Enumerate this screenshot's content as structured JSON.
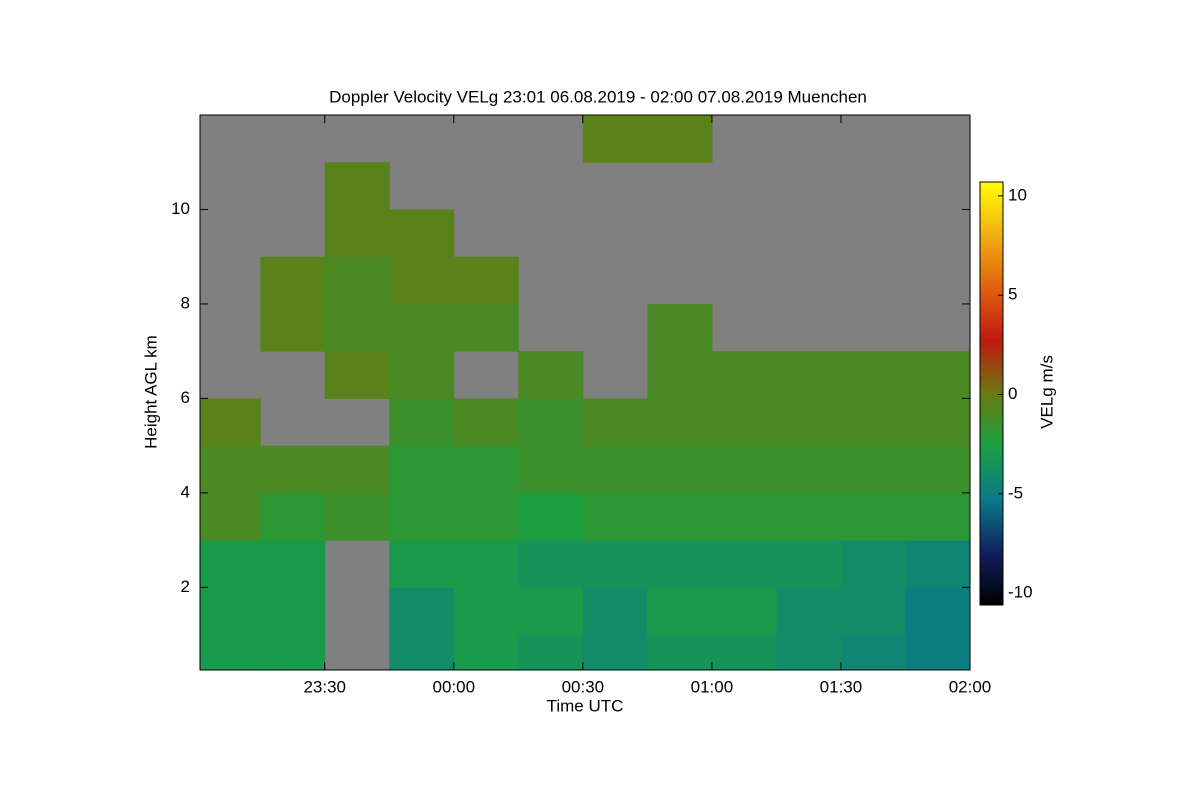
{
  "chart_data": {
    "type": "heatmap",
    "title": "Doppler Velocity VELg   23:01 06.08.2019 - 02:00 07.08.2019 Muenchen",
    "x_label": "Time UTC",
    "y_label": "Height AGL km",
    "colorbar_label": "VELg m/s",
    "xlim": [
      -59,
      120
    ],
    "xticks": [
      {
        "value": -30,
        "label": "23:30"
      },
      {
        "value": 0,
        "label": "00:00"
      },
      {
        "value": 30,
        "label": "00:30"
      },
      {
        "value": 60,
        "label": "01:00"
      },
      {
        "value": 90,
        "label": "01:30"
      },
      {
        "value": 120,
        "label": "02:00"
      }
    ],
    "ylim": [
      0.25,
      12
    ],
    "yticks": [
      2,
      4,
      6,
      8,
      10
    ],
    "zlim": [
      -10.6,
      10.7
    ],
    "zticks": [
      10,
      5,
      0,
      -5,
      -10
    ],
    "x_edges": [
      -59,
      -45,
      -30,
      -15,
      0,
      15,
      30,
      45,
      60,
      75,
      90,
      105,
      120
    ],
    "y_edges": [
      0.25,
      1,
      2,
      3,
      4,
      5,
      6,
      7,
      8,
      9,
      10,
      11,
      12
    ],
    "z": [
      [
        -3,
        -3,
        null,
        -4,
        -3,
        -3.5,
        -4,
        -3.5,
        -3.5,
        -4,
        -4.5,
        -5
      ],
      [
        -3,
        -3,
        null,
        -4,
        -3,
        -3,
        -4,
        -3,
        -3,
        -4,
        -4,
        -5
      ],
      [
        -3,
        -3,
        null,
        -3,
        -3,
        -3.5,
        -3.5,
        -3.5,
        -3.5,
        -3.5,
        -4,
        -4.5
      ],
      [
        -1,
        -2,
        -1.5,
        -2,
        -2,
        -2.5,
        -2,
        -2,
        -2,
        -2,
        -2,
        -2
      ],
      [
        -1,
        -1,
        -1,
        -2,
        -2,
        -1.5,
        -1.5,
        -1.5,
        -1.5,
        -1.5,
        -1.5,
        -1.5
      ],
      [
        -0.5,
        null,
        null,
        -1.5,
        -1,
        -1.5,
        -1,
        -1,
        -1,
        -1,
        -1,
        -1
      ],
      [
        null,
        null,
        -0.5,
        -1,
        null,
        -1,
        null,
        -1,
        -1,
        -1,
        -1,
        -1
      ],
      [
        null,
        -0.5,
        -1,
        -1,
        -1,
        null,
        null,
        -1,
        null,
        null,
        null,
        null
      ],
      [
        null,
        -0.5,
        -1,
        -0.5,
        -0.5,
        null,
        null,
        null,
        null,
        null,
        null,
        null
      ],
      [
        null,
        null,
        -0.5,
        -0.5,
        null,
        null,
        null,
        null,
        null,
        null,
        null,
        null
      ],
      [
        null,
        null,
        -0.5,
        null,
        null,
        null,
        null,
        null,
        null,
        null,
        null,
        null
      ],
      [
        null,
        null,
        null,
        null,
        null,
        null,
        -0.5,
        -0.5,
        null,
        null,
        null,
        null
      ]
    ],
    "missing_color": "#808080",
    "colormap": [
      "#000000",
      "#102060",
      "#0a7a8a",
      "#1aa040",
      "#6a7a10",
      "#c01810",
      "#e06010",
      "#f0b010",
      "#ffff00"
    ]
  }
}
